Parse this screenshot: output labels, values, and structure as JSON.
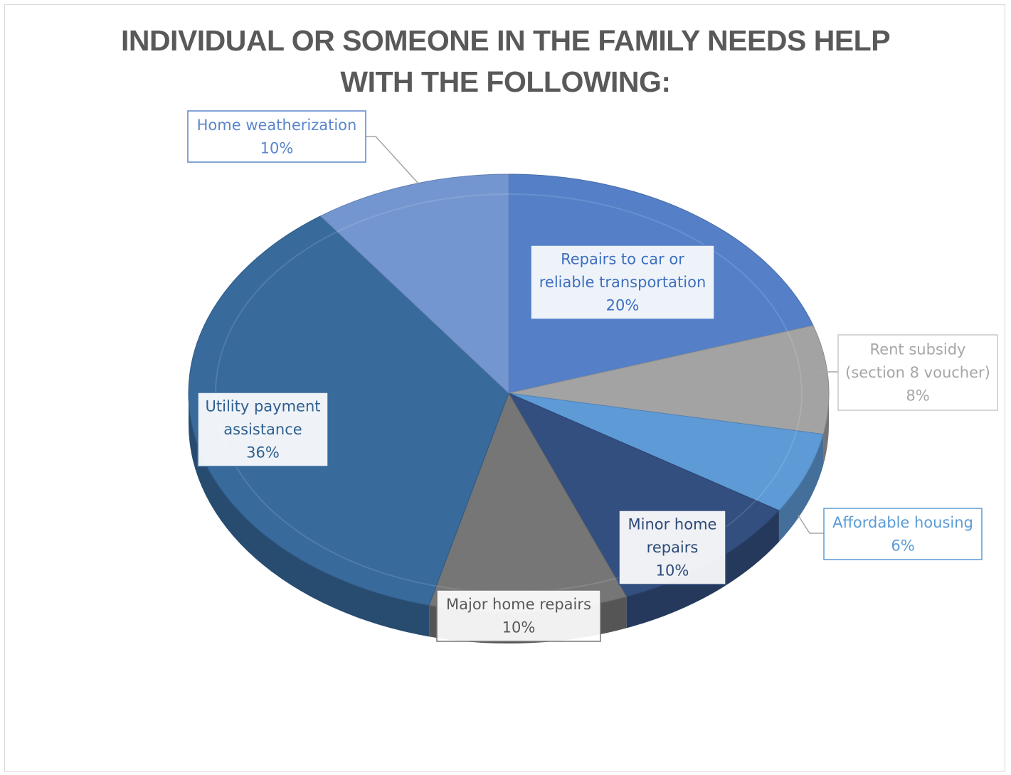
{
  "chart_data": {
    "type": "pie",
    "title": "INDIVIDUAL OR SOMEONE IN THE FAMILY NEEDS HELP WITH THE FOLLOWING:",
    "title_lines": [
      "INDIVIDUAL OR SOMEONE IN THE FAMILY NEEDS HELP",
      "WITH THE FOLLOWING:"
    ],
    "slices": [
      {
        "label": "Repairs to car or reliable transportation",
        "label_lines": [
          "Repairs to car or",
          "reliable transportation"
        ],
        "value": 20,
        "value_label": "20%",
        "color": "#5580c8",
        "text_color": "#3e6fbf"
      },
      {
        "label": "Rent subsidy (section 8 voucher)",
        "label_lines": [
          "Rent subsidy",
          "(section 8 voucher)"
        ],
        "value": 8,
        "value_label": "8%",
        "color": "#a3a3a3",
        "text_color": "#a6a6a6"
      },
      {
        "label": "Affordable housing",
        "label_lines": [
          "Affordable housing"
        ],
        "value": 6,
        "value_label": "6%",
        "color": "#5e9ad6",
        "text_color": "#5b9bd5"
      },
      {
        "label": "Minor home repairs",
        "label_lines": [
          "Minor home",
          "repairs"
        ],
        "value": 10,
        "value_label": "10%",
        "color": "#324f80",
        "text_color": "#2e4a78"
      },
      {
        "label": "Major home repairs",
        "label_lines": [
          "Major home repairs"
        ],
        "value": 10,
        "value_label": "10%",
        "color": "#767676",
        "text_color": "#595959"
      },
      {
        "label": "Utility payment assistance",
        "label_lines": [
          "Utility payment",
          "assistance"
        ],
        "value": 36,
        "value_label": "36%",
        "color": "#386a9c",
        "text_color": "#2f5f90"
      },
      {
        "label": "Home weatherization",
        "label_lines": [
          "Home weatherization"
        ],
        "value": 10,
        "value_label": "10%",
        "color": "#7496d0",
        "text_color": "#5b86cc"
      }
    ],
    "legend": "none"
  }
}
